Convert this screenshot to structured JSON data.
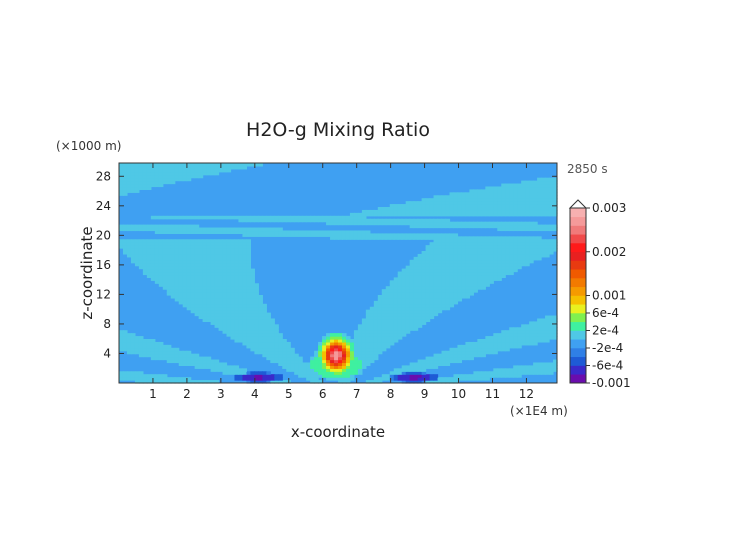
{
  "chart_data": {
    "type": "heatmap",
    "title": "H2O-g Mixing Ratio",
    "xlabel": "x-coordinate",
    "ylabel": "z-coordinate",
    "x_unit": "(×1E4 m)",
    "y_unit": "(×1000 m)",
    "time_label": "2850 s",
    "xlim": [
      0,
      12.9
    ],
    "ylim": [
      0,
      29.8
    ],
    "x_ticks": [
      1,
      2,
      3,
      4,
      5,
      6,
      7,
      8,
      9,
      10,
      11,
      12
    ],
    "y_ticks": [
      4,
      8,
      12,
      16,
      20,
      24,
      28
    ],
    "colorbar": {
      "levels": [
        -0.001,
        -0.0008,
        -0.0006,
        -0.0004,
        -0.0002,
        0,
        0.0002,
        0.0004,
        0.0006,
        0.0008,
        0.001,
        0.0012,
        0.0014,
        0.0016,
        0.0018,
        0.002,
        0.0022,
        0.0024,
        0.0026,
        0.0028,
        0.003
      ],
      "colors": [
        "#6a0dad",
        "#3a2acb",
        "#1e5bd6",
        "#2f7fe6",
        "#3fa0f2",
        "#4fc8e6",
        "#3ff0a0",
        "#7ff04f",
        "#e8f020",
        "#f5c000",
        "#f59a00",
        "#f27a00",
        "#f05a00",
        "#e83a10",
        "#e82020",
        "#ff1a1a",
        "#f04a4a",
        "#f07a7a",
        "#f59a9a",
        "#f7b0b0"
      ],
      "tick_labels": [
        "0.003",
        "0.002",
        "0.001",
        "6e-4",
        "2e-4",
        "-2e-4",
        "-6e-4",
        "-0.001"
      ],
      "tick_values": [
        0.003,
        0.002,
        0.001,
        0.0006,
        0.0002,
        -0.0002,
        -0.0006,
        -0.001
      ]
    },
    "field": {
      "background_value": -0.0001,
      "band_value": 0.0001,
      "center_x": 6.4,
      "max_value": 0.0028,
      "min_value": -0.0009
    }
  }
}
